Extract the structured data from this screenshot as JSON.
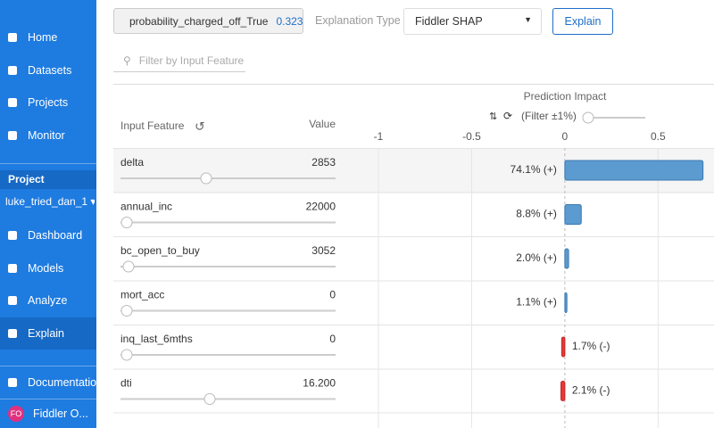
{
  "sidebar": {
    "nav": [
      "Home",
      "Datasets",
      "Projects",
      "Monitor"
    ],
    "project_label": "Project",
    "project_name": "luke_tried_dan_1",
    "project_nav": [
      "Dashboard",
      "Models",
      "Analyze",
      "Explain"
    ],
    "docs": "Documentatio",
    "avatar": "FO",
    "org": "Fiddler O..."
  },
  "toolbar": {
    "output_name": "probability_charged_off_True",
    "output_value": "0.323",
    "explanation_label": "Explanation Type",
    "explanation_value": "Fiddler SHAP",
    "button": "Explain",
    "filter_placeholder": "Filter by Input Feature"
  },
  "chart_data": {
    "type": "bar",
    "orientation": "horizontal",
    "title": "Prediction Impact",
    "filter_label": "(Filter ±1%)",
    "columns": [
      "Input Feature",
      "Value"
    ],
    "categories": [
      "delta",
      "annual_inc",
      "bc_open_to_buy",
      "mort_acc",
      "inq_last_6mths",
      "dti"
    ],
    "feature_values": [
      "2853",
      "22000",
      "3052",
      "0",
      "0",
      "16.200"
    ],
    "values": [
      0.741,
      0.088,
      0.02,
      0.011,
      -0.017,
      -0.021
    ],
    "value_labels": [
      "74.1% (+)",
      "8.8% (+)",
      "2.0% (+)",
      "1.1% (+)",
      "1.7% (-)",
      "2.1% (-)"
    ],
    "xlim": [
      -1,
      0.8
    ],
    "xticks": [
      -1,
      -0.5,
      0,
      0.5
    ],
    "colors": {
      "positive": "#5b9bd0",
      "negative": "#e53935"
    }
  }
}
